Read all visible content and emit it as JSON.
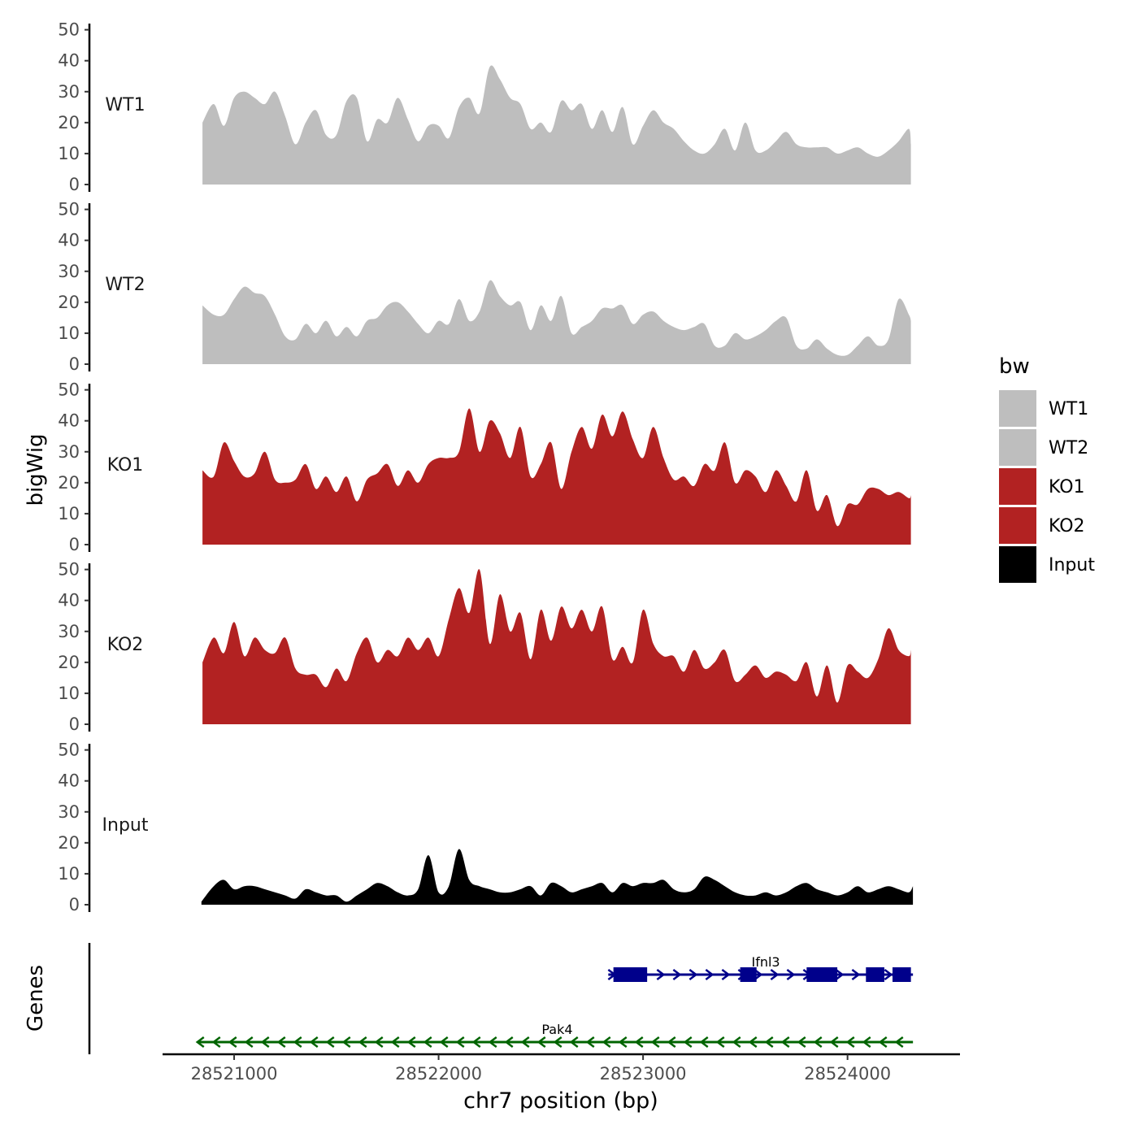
{
  "chart_data": {
    "type": "area",
    "title": "",
    "xlabel": "chr7 position (bp)",
    "ylabel": "bigWig",
    "genes_label": "Genes",
    "xlim": [
      28520650,
      28524550
    ],
    "ylim": [
      0,
      52
    ],
    "ytick_labels": [
      "0",
      "10",
      "20",
      "30",
      "40",
      "50"
    ],
    "xtick_labels": [
      "28521000",
      "28522000",
      "28523000",
      "28524000"
    ],
    "legend": {
      "title": "bw",
      "position": "right"
    },
    "series": [
      {
        "name": "WT1",
        "color": "#bebebe",
        "x": [
          28520845,
          28520900,
          28520950,
          28521000,
          28521050,
          28521100,
          28521150,
          28521200,
          28521250,
          28521300,
          28521350,
          28521400,
          28521450,
          28521500,
          28521550,
          28521600,
          28521650,
          28521700,
          28521750,
          28521800,
          28521850,
          28521900,
          28521950,
          28522000,
          28522050,
          28522100,
          28522150,
          28522200,
          28522250,
          28522300,
          28522350,
          28522400,
          28522450,
          28522500,
          28522550,
          28522600,
          28522650,
          28522700,
          28522750,
          28522800,
          28522850,
          28522900,
          28522950,
          28523000,
          28523050,
          28523100,
          28523150,
          28523200,
          28523250,
          28523300,
          28523350,
          28523400,
          28523450,
          28523500,
          28523550,
          28523600,
          28523650,
          28523700,
          28523750,
          28523800,
          28523850,
          28523900,
          28523950,
          28524000,
          28524050,
          28524100,
          28524150,
          28524200,
          28524250,
          28524300,
          28524310
        ],
        "values": [
          20,
          26,
          19,
          28,
          30,
          28,
          26,
          30,
          22,
          13,
          20,
          24,
          16,
          16,
          27,
          28,
          14,
          21,
          20,
          28,
          21,
          14,
          19,
          19,
          15,
          25,
          28,
          23,
          38,
          34,
          28,
          26,
          18,
          20,
          17,
          27,
          24,
          26,
          18,
          24,
          17,
          25,
          13,
          19,
          24,
          20,
          18,
          14,
          11,
          10,
          13,
          18,
          11,
          20,
          11,
          11,
          14,
          17,
          13,
          12,
          12,
          12,
          10,
          11,
          12,
          10,
          9,
          11,
          14,
          18,
          13
        ]
      },
      {
        "name": "WT2",
        "color": "#bebebe",
        "x": [
          28520845,
          28520900,
          28520950,
          28521000,
          28521050,
          28521100,
          28521150,
          28521200,
          28521250,
          28521300,
          28521350,
          28521400,
          28521450,
          28521500,
          28521550,
          28521600,
          28521650,
          28521700,
          28521750,
          28521800,
          28521850,
          28521900,
          28521950,
          28522000,
          28522050,
          28522100,
          28522150,
          28522200,
          28522250,
          28522300,
          28522350,
          28522400,
          28522450,
          28522500,
          28522550,
          28522600,
          28522650,
          28522700,
          28522750,
          28522800,
          28522850,
          28522900,
          28522950,
          28523000,
          28523050,
          28523100,
          28523150,
          28523200,
          28523250,
          28523300,
          28523350,
          28523400,
          28523450,
          28523500,
          28523550,
          28523600,
          28523650,
          28523700,
          28523750,
          28523800,
          28523850,
          28523900,
          28523950,
          28524000,
          28524050,
          28524100,
          28524150,
          28524200,
          28524250,
          28524300,
          28524310
        ],
        "values": [
          19,
          16,
          16,
          21,
          25,
          23,
          22,
          16,
          9,
          8,
          13,
          10,
          14,
          9,
          12,
          9,
          14,
          15,
          19,
          20,
          17,
          13,
          10,
          14,
          13,
          21,
          14,
          17,
          27,
          22,
          19,
          20,
          11,
          19,
          14,
          22,
          10,
          12,
          14,
          18,
          18,
          19,
          13,
          16,
          17,
          14,
          12,
          11,
          12,
          13,
          6,
          6,
          10,
          8,
          9,
          11,
          14,
          15,
          6,
          5,
          8,
          5,
          3,
          3,
          6,
          9,
          6,
          8,
          21,
          16,
          14
        ]
      },
      {
        "name": "KO1",
        "color": "#b22222",
        "x": [
          28520845,
          28520900,
          28520950,
          28521000,
          28521050,
          28521100,
          28521150,
          28521200,
          28521250,
          28521300,
          28521350,
          28521400,
          28521450,
          28521500,
          28521550,
          28521600,
          28521650,
          28521700,
          28521750,
          28521800,
          28521850,
          28521900,
          28521950,
          28522000,
          28522050,
          28522100,
          28522150,
          28522200,
          28522250,
          28522300,
          28522350,
          28522400,
          28522450,
          28522500,
          28522550,
          28522600,
          28522650,
          28522700,
          28522750,
          28522800,
          28522850,
          28522900,
          28522950,
          28523000,
          28523050,
          28523100,
          28523150,
          28523200,
          28523250,
          28523300,
          28523350,
          28523400,
          28523450,
          28523500,
          28523550,
          28523600,
          28523650,
          28523700,
          28523750,
          28523800,
          28523850,
          28523900,
          28523950,
          28524000,
          28524050,
          28524100,
          28524150,
          28524200,
          28524250,
          28524300,
          28524310
        ],
        "values": [
          24,
          22,
          33,
          27,
          22,
          23,
          30,
          21,
          20,
          21,
          26,
          18,
          22,
          17,
          22,
          14,
          21,
          23,
          26,
          19,
          24,
          20,
          26,
          28,
          28,
          30,
          44,
          30,
          40,
          36,
          28,
          38,
          22,
          26,
          33,
          18,
          30,
          38,
          31,
          42,
          35,
          43,
          34,
          28,
          38,
          28,
          21,
          22,
          19,
          26,
          24,
          33,
          20,
          24,
          22,
          17,
          24,
          19,
          14,
          24,
          11,
          16,
          6,
          13,
          13,
          18,
          18,
          16,
          17,
          15,
          16
        ]
      },
      {
        "name": "KO2",
        "color": "#b22222",
        "x": [
          28520845,
          28520900,
          28520950,
          28521000,
          28521050,
          28521100,
          28521150,
          28521200,
          28521250,
          28521300,
          28521350,
          28521400,
          28521450,
          28521500,
          28521550,
          28521600,
          28521650,
          28521700,
          28521750,
          28521800,
          28521850,
          28521900,
          28521950,
          28522000,
          28522050,
          28522100,
          28522150,
          28522200,
          28522250,
          28522300,
          28522350,
          28522400,
          28522450,
          28522500,
          28522550,
          28522600,
          28522650,
          28522700,
          28522750,
          28522800,
          28522850,
          28522900,
          28522950,
          28523000,
          28523050,
          28523100,
          28523150,
          28523200,
          28523250,
          28523300,
          28523350,
          28523400,
          28523450,
          28523500,
          28523550,
          28523600,
          28523650,
          28523700,
          28523750,
          28523800,
          28523850,
          28523900,
          28523950,
          28524000,
          28524050,
          28524100,
          28524150,
          28524200,
          28524250,
          28524300,
          28524310
        ],
        "values": [
          20,
          28,
          23,
          33,
          22,
          28,
          24,
          23,
          28,
          18,
          16,
          16,
          12,
          18,
          14,
          23,
          28,
          20,
          24,
          22,
          28,
          24,
          28,
          22,
          34,
          44,
          36,
          50,
          26,
          42,
          30,
          36,
          21,
          37,
          27,
          38,
          31,
          37,
          30,
          38,
          21,
          25,
          20,
          37,
          26,
          22,
          22,
          17,
          24,
          18,
          20,
          24,
          14,
          16,
          19,
          15,
          17,
          16,
          14,
          20,
          9,
          19,
          7,
          19,
          17,
          15,
          21,
          31,
          24,
          22,
          24
        ]
      },
      {
        "name": "Input",
        "color": "#000000",
        "x": [
          28520840,
          28520900,
          28520950,
          28521000,
          28521050,
          28521100,
          28521150,
          28521200,
          28521250,
          28521300,
          28521350,
          28521400,
          28521450,
          28521500,
          28521550,
          28521600,
          28521650,
          28521700,
          28521750,
          28521800,
          28521850,
          28521900,
          28521950,
          28522000,
          28522050,
          28522100,
          28522150,
          28522200,
          28522250,
          28522300,
          28522350,
          28522400,
          28522450,
          28522500,
          28522550,
          28522600,
          28522650,
          28522700,
          28522750,
          28522800,
          28522850,
          28522900,
          28522950,
          28523000,
          28523050,
          28523100,
          28523150,
          28523200,
          28523250,
          28523300,
          28523350,
          28523400,
          28523450,
          28523500,
          28523550,
          28523600,
          28523650,
          28523700,
          28523750,
          28523800,
          28523850,
          28523900,
          28523950,
          28524000,
          28524050,
          28524100,
          28524150,
          28524200,
          28524250,
          28524300,
          28524320
        ],
        "values": [
          1,
          6,
          8,
          5,
          6,
          6,
          5,
          4,
          3,
          2,
          5,
          4,
          3,
          3,
          1,
          3,
          5,
          7,
          6,
          4,
          3,
          5,
          16,
          4,
          6,
          18,
          8,
          6,
          5,
          4,
          4,
          5,
          6,
          3,
          7,
          6,
          4,
          5,
          6,
          7,
          4,
          7,
          6,
          7,
          7,
          8,
          5,
          4,
          5,
          9,
          8,
          6,
          4,
          3,
          3,
          4,
          3,
          4,
          6,
          7,
          5,
          4,
          3,
          4,
          6,
          4,
          5,
          6,
          5,
          4,
          6
        ]
      }
    ],
    "genes": [
      {
        "name": "Ifnl3",
        "strand": "+",
        "color": "#00008b",
        "start": 28522830,
        "end": 28524320,
        "exons": [
          [
            28522855,
            28523020
          ],
          [
            28523475,
            28523555
          ],
          [
            28523800,
            28523950
          ],
          [
            28524090,
            28524180
          ],
          [
            28524220,
            28524310
          ]
        ]
      },
      {
        "name": "Pak4",
        "strand": "-",
        "color": "#006400",
        "start": 28520820,
        "end": 28524320,
        "exons": []
      }
    ]
  }
}
